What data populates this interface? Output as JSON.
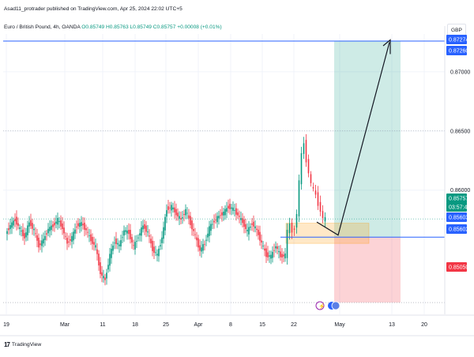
{
  "header": {
    "publish_line": "Asad11_protrader published on TradingView.com, Apr 25, 2024 22:02 UTC+5",
    "symbol_prefix": "Euro / British Pound, 4h, OANDA",
    "ohlc": "O0.85749 H0.85763 L0.85749 C0.85757 +0.00008 (+0.01%)",
    "currency": "GBP"
  },
  "footer": {
    "brand": "TradingView"
  },
  "chart_data": {
    "type": "candlestick",
    "symbol": "Euro / British Pound",
    "interval": "4h",
    "exchange": "OANDA",
    "currency": "GBP",
    "ylim": [
      0.8495,
      0.8732
    ],
    "y_ticks": [
      {
        "label": "0.87000",
        "value": 0.87
      },
      {
        "label": "0.86500",
        "value": 0.865
      },
      {
        "label": "0.86000",
        "value": 0.86
      }
    ],
    "x_ticks": [
      "19",
      "Mar",
      "11",
      "18",
      "25",
      "Apr",
      "8",
      "15",
      "22",
      "May",
      "13",
      "20"
    ],
    "price_labels": [
      {
        "label": "0.87274",
        "value": 0.87274,
        "color": "#2962ff"
      },
      {
        "label": "0.87260",
        "value": 0.8726,
        "color": "#2962ff"
      },
      {
        "label": "0.85757",
        "value": 0.85757,
        "color": "#089981"
      },
      {
        "label": "03:57:43",
        "value": 0.85706,
        "color": "#089981"
      },
      {
        "label": "0.85603",
        "value": 0.85603,
        "color": "#2962ff"
      },
      {
        "label": "0.85602",
        "value": 0.85602,
        "color": "#2962ff"
      },
      {
        "label": "0.85050",
        "value": 0.8505,
        "color": "#f23645"
      }
    ],
    "position": {
      "direction": "long",
      "entry": 0.85603,
      "target": 0.8726,
      "stop": 0.8505
    },
    "approx_path": [
      [
        0,
        0.8563
      ],
      [
        6,
        0.857
      ],
      [
        12,
        0.8575
      ],
      [
        18,
        0.8567
      ],
      [
        24,
        0.856
      ],
      [
        30,
        0.8573
      ],
      [
        36,
        0.8566
      ],
      [
        42,
        0.8553
      ],
      [
        48,
        0.8558
      ],
      [
        54,
        0.8567
      ],
      [
        60,
        0.857
      ],
      [
        66,
        0.8575
      ],
      [
        72,
        0.8568
      ],
      [
        78,
        0.8555
      ],
      [
        84,
        0.856
      ],
      [
        90,
        0.857
      ],
      [
        96,
        0.8572
      ],
      [
        102,
        0.8566
      ],
      [
        108,
        0.8558
      ],
      [
        114,
        0.8552
      ],
      [
        120,
        0.853
      ],
      [
        126,
        0.8524
      ],
      [
        132,
        0.8545
      ],
      [
        138,
        0.8557
      ],
      [
        144,
        0.8553
      ],
      [
        150,
        0.8566
      ],
      [
        156,
        0.8564
      ],
      [
        162,
        0.8552
      ],
      [
        168,
        0.8561
      ],
      [
        174,
        0.857
      ],
      [
        180,
        0.8564
      ],
      [
        186,
        0.855
      ],
      [
        192,
        0.8545
      ],
      [
        198,
        0.856
      ],
      [
        204,
        0.8584
      ],
      [
        210,
        0.8586
      ],
      [
        216,
        0.858
      ],
      [
        222,
        0.8575
      ],
      [
        228,
        0.8583
      ],
      [
        234,
        0.8572
      ],
      [
        240,
        0.8561
      ],
      [
        246,
        0.8549
      ],
      [
        252,
        0.8555
      ],
      [
        258,
        0.8568
      ],
      [
        264,
        0.8574
      ],
      [
        270,
        0.8578
      ],
      [
        276,
        0.8581
      ],
      [
        282,
        0.8586
      ],
      [
        288,
        0.8584
      ],
      [
        294,
        0.8579
      ],
      [
        300,
        0.8573
      ],
      [
        306,
        0.8565
      ],
      [
        312,
        0.8572
      ],
      [
        318,
        0.8566
      ],
      [
        324,
        0.8555
      ],
      [
        330,
        0.8545
      ],
      [
        336,
        0.8544
      ],
      [
        342,
        0.8553
      ],
      [
        348,
        0.8544
      ],
      [
        354,
        0.8545
      ],
      [
        357,
        0.8565
      ],
      [
        360,
        0.8571
      ],
      [
        363,
        0.8565
      ],
      [
        366,
        0.8568
      ],
      [
        369,
        0.858
      ],
      [
        372,
        0.8607
      ],
      [
        375,
        0.863
      ],
      [
        378,
        0.864
      ],
      [
        381,
        0.8625
      ],
      [
        384,
        0.8615
      ],
      [
        387,
        0.8605
      ],
      [
        390,
        0.86
      ],
      [
        393,
        0.8596
      ],
      [
        396,
        0.8588
      ],
      [
        399,
        0.8583
      ],
      [
        402,
        0.8576
      ],
      [
        405,
        0.85757
      ]
    ]
  },
  "toolbar": {
    "events": [
      "flash-icon",
      "flag-icon"
    ]
  }
}
